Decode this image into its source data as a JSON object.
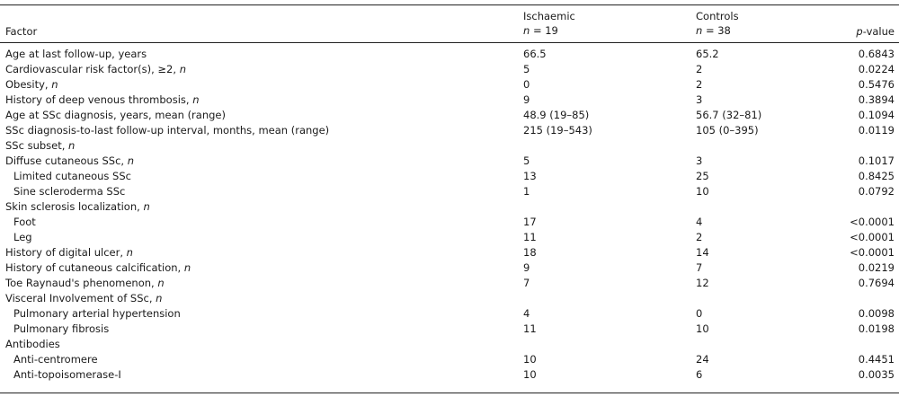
{
  "header": {
    "factor": "Factor",
    "ischaemic": "Ischaemic",
    "ischaemic_n": "n = 19",
    "controls": "Controls",
    "controls_n": "n = 38",
    "pvalue": "p-value"
  },
  "rows": [
    {
      "factor": "Age at last follow-up, years",
      "isch": "66.5",
      "ctrl": "65.2",
      "p": "0.6843"
    },
    {
      "factor": "Cardiovascular risk factor(s), ≥2, n",
      "isch": "5",
      "ctrl": "2",
      "p": "0.0224"
    },
    {
      "factor": "Obesity, n",
      "isch": "0",
      "ctrl": "2",
      "p": "0.5476"
    },
    {
      "factor": "History of deep venous thrombosis, n",
      "isch": "9",
      "ctrl": "3",
      "p": "0.3894"
    },
    {
      "factor": "Age at SSc diagnosis, years, mean (range)",
      "isch": "48.9 (19–85)",
      "ctrl": "56.7 (32–81)",
      "p": "0.1094"
    },
    {
      "factor": "SSc diagnosis-to-last follow-up interval, months, mean (range)",
      "isch": "215 (19–543)",
      "ctrl": "105 (0–395)",
      "p": "0.0119"
    },
    {
      "factor": "SSc subset, n",
      "isch": "",
      "ctrl": "",
      "p": ""
    },
    {
      "factor": "Diffuse cutaneous SSc, n",
      "isch": "5",
      "ctrl": "3",
      "p": "0.1017"
    },
    {
      "factor": "Limited cutaneous SSc",
      "isch": "13",
      "ctrl": "25",
      "p": "0.8425",
      "indent": true
    },
    {
      "factor": "Sine scleroderma SSc",
      "isch": "1",
      "ctrl": "10",
      "p": "0.0792",
      "indent": true
    },
    {
      "factor": "Skin sclerosis localization, n",
      "isch": "",
      "ctrl": "",
      "p": ""
    },
    {
      "factor": "Foot",
      "isch": "17",
      "ctrl": "4",
      "p": "<0.0001",
      "indent": true
    },
    {
      "factor": "Leg",
      "isch": "11",
      "ctrl": "2",
      "p": "<0.0001",
      "indent": true
    },
    {
      "factor": "History of digital ulcer, n",
      "isch": "18",
      "ctrl": "14",
      "p": "<0.0001"
    },
    {
      "factor": "History of cutaneous calcification, n",
      "isch": "9",
      "ctrl": "7",
      "p": "0.0219"
    },
    {
      "factor": "Toe Raynaud's phenomenon, n",
      "isch": "7",
      "ctrl": "12",
      "p": "0.7694"
    },
    {
      "factor": "Visceral Involvement of SSc, n",
      "isch": "",
      "ctrl": "",
      "p": ""
    },
    {
      "factor": "Pulmonary arterial hypertension",
      "isch": "4",
      "ctrl": "0",
      "p": "0.0098",
      "indent": true
    },
    {
      "factor": "Pulmonary fibrosis",
      "isch": "11",
      "ctrl": "10",
      "p": "0.0198",
      "indent": true
    },
    {
      "factor": "Antibodies",
      "isch": "",
      "ctrl": "",
      "p": ""
    },
    {
      "factor": "Anti-centromere",
      "isch": "10",
      "ctrl": "24",
      "p": "0.4451",
      "indent": true
    },
    {
      "factor": "Anti-topoisomerase-I",
      "isch": "10",
      "ctrl": "6",
      "p": "0.0035",
      "indent": true
    }
  ]
}
